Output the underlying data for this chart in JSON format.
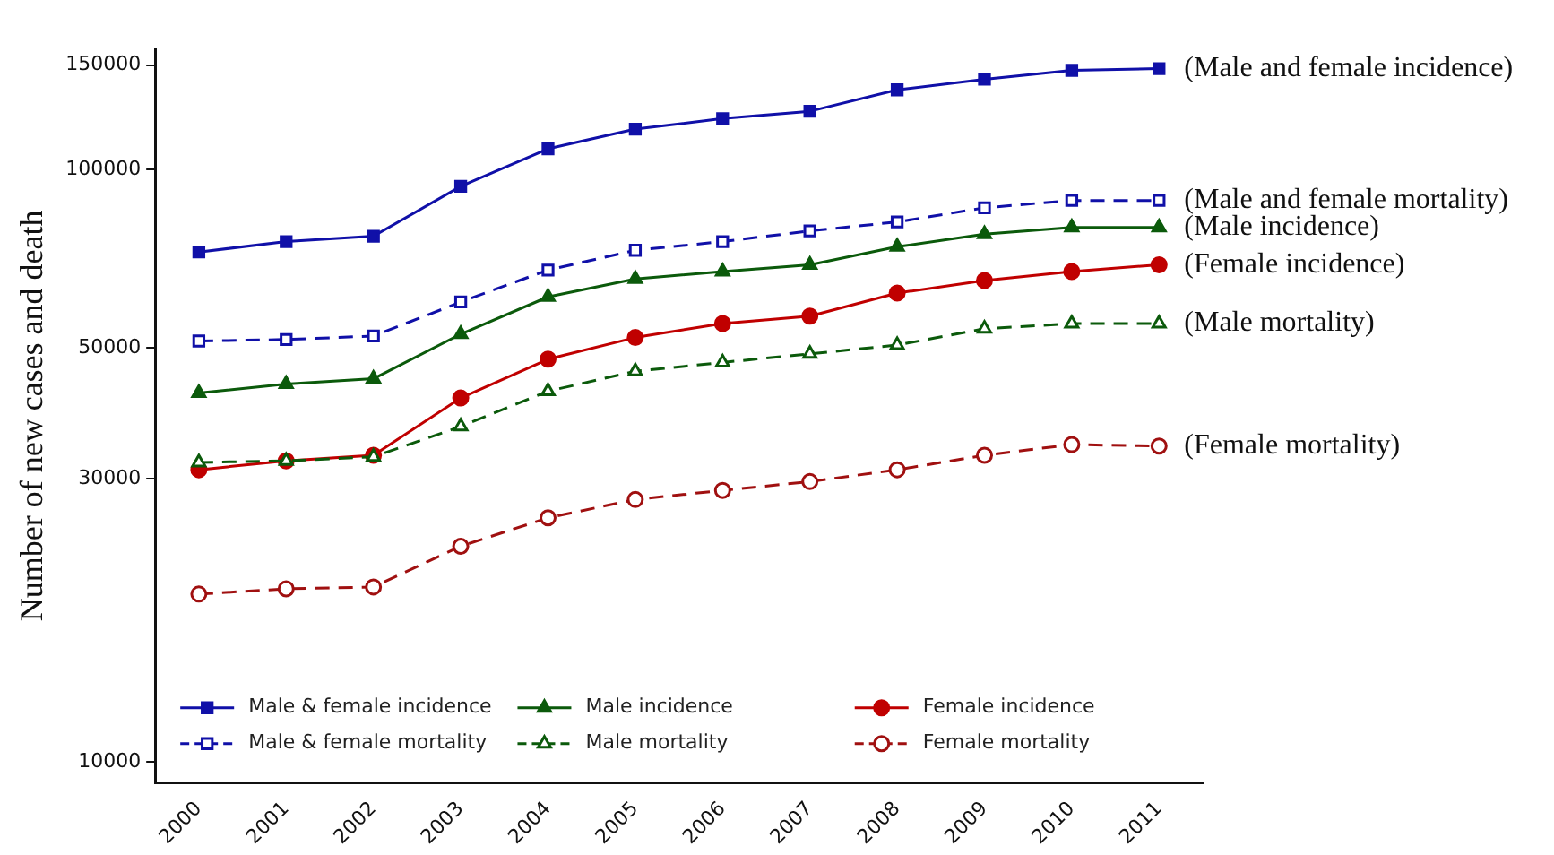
{
  "chart_data": {
    "type": "line",
    "ylabel": "Number of new cases and death",
    "log": "y",
    "ylim": [
      9200,
      160000
    ],
    "yticks": [
      10000,
      30000,
      50000,
      100000,
      150000
    ],
    "grid": false,
    "legend": "bottom",
    "categories": [
      "2000",
      "2001",
      "2002",
      "2003",
      "2004",
      "2005",
      "2006",
      "2007",
      "2008",
      "2009",
      "2010",
      "2011"
    ],
    "series": [
      {
        "name": "Male & female incidence",
        "color": "#1010a8",
        "marker": "square",
        "line_style": "solid",
        "values": [
          72500,
          75500,
          77100,
          93600,
          108300,
          116900,
          121800,
          125300,
          136200,
          141900,
          146900,
          147900
        ]
      },
      {
        "name": "Male & female mortality",
        "color": "#1010a8",
        "marker": "square",
        "line_style": "dashed",
        "values": [
          51300,
          51600,
          52300,
          59700,
          67600,
          73000,
          75500,
          78700,
          81500,
          86100,
          88600,
          88600
        ]
      },
      {
        "name": "Male incidence",
        "color": "#0b5a0b",
        "marker": "triangle",
        "line_style": "solid",
        "values": [
          41900,
          43400,
          44300,
          52700,
          60900,
          65300,
          67200,
          69000,
          74000,
          77700,
          79800,
          79800
        ]
      },
      {
        "name": "Male mortality",
        "color": "#0b5a0b",
        "marker": "triangle",
        "line_style": "dashed",
        "values": [
          32000,
          32200,
          32700,
          36800,
          42200,
          45600,
          47200,
          48800,
          50500,
          53800,
          54900,
          54900
        ]
      },
      {
        "name": "Female incidence",
        "color": "#c00000",
        "marker": "circle",
        "line_style": "solid",
        "values": [
          31100,
          32200,
          32900,
          41100,
          47800,
          52000,
          54900,
          56500,
          61800,
          64900,
          67200,
          69000
        ]
      },
      {
        "name": "Female mortality",
        "color": "#a01010",
        "marker": "circle",
        "line_style": "dashed",
        "values": [
          19180,
          19580,
          19720,
          23100,
          25800,
          27700,
          28700,
          29700,
          31100,
          32900,
          34300,
          34100
        ]
      }
    ],
    "annotations": [
      {
        "text": "(Male and female incidence)",
        "x": "2011",
        "y": 147900
      },
      {
        "text": "(Male and female mortality)",
        "x": "2011",
        "y": 88600
      },
      {
        "text": "(Male incidence)",
        "x": "2011",
        "y": 79800
      },
      {
        "text": "(Female incidence)",
        "x": "2011",
        "y": 69000
      },
      {
        "text": "(Male mortality)",
        "x": "2011",
        "y": 54900
      },
      {
        "text": "(Female mortality)",
        "x": "2011",
        "y": 34100
      }
    ]
  }
}
